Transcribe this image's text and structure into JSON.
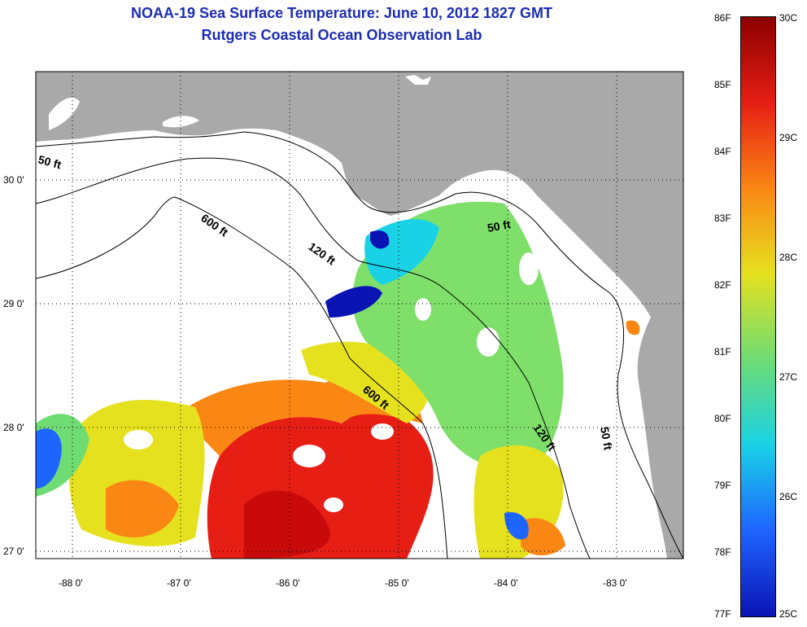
{
  "title": {
    "line1": "NOAA-19 Sea Surface Temperature:  June 10, 2012 1827 GMT",
    "line2": "Rutgers Coastal Ocean Observation Lab"
  },
  "axes": {
    "lon_ticks": [
      "-88 0'",
      "-87 0'",
      "-86 0'",
      "-85 0'",
      "-84 0'",
      "-83 0'"
    ],
    "lat_ticks": [
      "30 0'",
      "29 0'",
      "28 0'",
      "27 0'"
    ]
  },
  "contours": {
    "c50a": "50 ft",
    "c600a": "600 ft",
    "c120a": "120 ft",
    "c50b": "50 ft",
    "c600b": "600 ft",
    "c120b": "120 ft",
    "c50c": "50 ft"
  },
  "colorbar": {
    "fahrenheit": [
      "86F",
      "85F",
      "84F",
      "83F",
      "82F",
      "81F",
      "80F",
      "79F",
      "78F",
      "77F"
    ],
    "celsius": [
      "30C",
      "29C",
      "28C",
      "27C",
      "26C",
      "25C"
    ]
  },
  "colors": {
    "land": "#a9a9a9",
    "title": "#1c2cb4",
    "dark_blue": "#0a14b4",
    "blue": "#1e64ff",
    "cyan": "#19d2e6",
    "green": "#6edc73",
    "yellow": "#e6e11e",
    "orange": "#fa8714",
    "red": "#e61e14",
    "dark_red": "#8c0000"
  }
}
